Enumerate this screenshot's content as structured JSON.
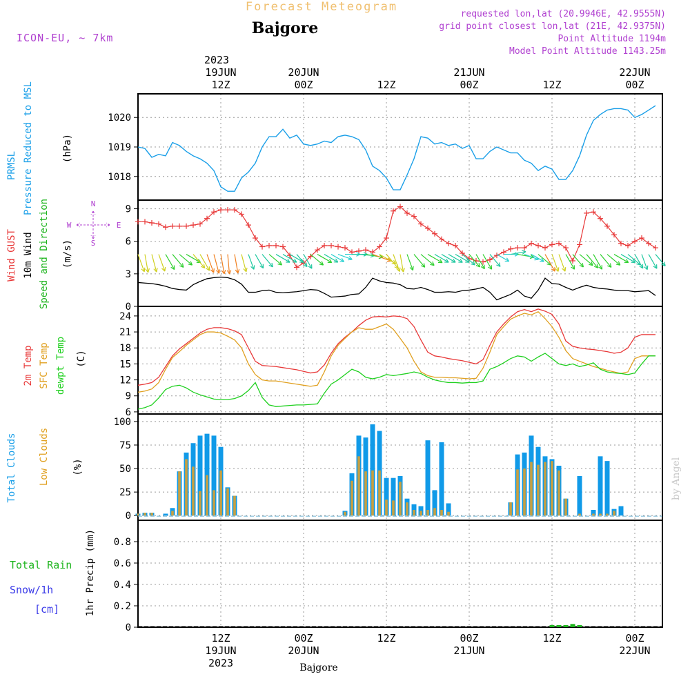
{
  "header": {
    "main_title": "Forecast Meteogram",
    "location": "Bajgore",
    "model": "ICON-EU, ~ 7km",
    "requested_point": "requested lon,lat (20.9946E, 42.9555N)",
    "grid_point": "grid point closest lon,lat (21E, 42.9375N)",
    "point_altitude": "Point Altitude 1194m",
    "model_altitude": "Model Point Altitude 1143.25m"
  },
  "time_axis": {
    "top_year": "2023",
    "ticks": [
      {
        "hour": 12,
        "label": "12Z",
        "date": "19JUN",
        "year": "2023"
      },
      {
        "hour": 24,
        "label": "00Z",
        "date": "20JUN",
        "year": ""
      },
      {
        "hour": 36,
        "label": "12Z",
        "date": "",
        "year": ""
      },
      {
        "hour": 48,
        "label": "00Z",
        "date": "21JUN",
        "year": ""
      },
      {
        "hour": 60,
        "label": "12Z",
        "date": "",
        "year": ""
      },
      {
        "hour": 72,
        "label": "00Z",
        "date": "22JUN",
        "year": ""
      }
    ],
    "range_hours": [
      0,
      76
    ],
    "footer_location": "Bajgore",
    "watermark": "by Angel"
  },
  "colors": {
    "pressure": "#1a9fe8",
    "gust": "#e83838",
    "wind_speed": "#000000",
    "wind_dir_label": "#1fb51f",
    "temp_2m": "#e83838",
    "sfc_temp": "#e0a020",
    "dewpoint": "#1fd01f",
    "total_clouds": "#109ae8",
    "low_clouds": "#c8a040",
    "rain": "#1fb51f",
    "snow": "#3a3ae8",
    "compass": "#b040d0",
    "title_orange": "#f0c070",
    "header_purple": "#b040d0"
  },
  "chart_data": [
    {
      "type": "line",
      "title": "PRMSL",
      "ylabel": "Pressure Reduced to MSL",
      "unit": "(hPa)",
      "ylim": [
        1017.2,
        1020.8
      ],
      "yticks": [
        1018,
        1019,
        1020
      ],
      "x_hours": [
        0,
        1,
        2,
        3,
        4,
        5,
        6,
        7,
        8,
        9,
        10,
        11,
        12,
        13,
        14,
        15,
        16,
        17,
        18,
        19,
        20,
        21,
        22,
        23,
        24,
        25,
        26,
        27,
        28,
        29,
        30,
        31,
        32,
        33,
        34,
        35,
        36,
        37,
        38,
        39,
        40,
        41,
        42,
        43,
        44,
        45,
        46,
        47,
        48,
        49,
        50,
        51,
        52,
        53,
        54,
        55,
        56,
        57,
        58,
        59,
        60,
        61,
        62,
        63,
        64,
        65,
        66,
        67,
        68,
        69,
        70,
        71,
        72,
        73,
        74,
        75
      ],
      "values": [
        1019.0,
        1018.95,
        1018.65,
        1018.75,
        1018.7,
        1019.15,
        1019.05,
        1018.85,
        1018.7,
        1018.6,
        1018.45,
        1018.2,
        1017.65,
        1017.5,
        1017.5,
        1017.95,
        1018.15,
        1018.45,
        1019.0,
        1019.35,
        1019.35,
        1019.6,
        1019.3,
        1019.4,
        1019.1,
        1019.05,
        1019.1,
        1019.2,
        1019.15,
        1019.35,
        1019.4,
        1019.35,
        1019.25,
        1018.9,
        1018.35,
        1018.2,
        1017.95,
        1017.55,
        1017.55,
        1018.05,
        1018.6,
        1019.35,
        1019.3,
        1019.1,
        1019.15,
        1019.05,
        1019.1,
        1018.95,
        1019.05,
        1018.6,
        1018.6,
        1018.85,
        1019.0,
        1018.9,
        1018.8,
        1018.8,
        1018.55,
        1018.45,
        1018.2,
        1018.35,
        1018.25,
        1017.9,
        1017.9,
        1018.2,
        1018.7,
        1019.4,
        1019.9,
        1020.1,
        1020.25,
        1020.3,
        1020.3,
        1020.25,
        1020.0,
        1020.1,
        1020.25,
        1020.4
      ]
    },
    {
      "type": "line",
      "title": "Wind GUST",
      "ylabel": "10m Wind Speed and Direction",
      "unit": "(m/s)",
      "ylim": [
        0,
        9.8
      ],
      "yticks": [
        0,
        3,
        6,
        9
      ],
      "compass": {
        "north": "N",
        "south": "S",
        "east": "E",
        "west": "W"
      },
      "x_hours": [
        0,
        1,
        2,
        3,
        4,
        5,
        6,
        7,
        8,
        9,
        10,
        11,
        12,
        13,
        14,
        15,
        16,
        17,
        18,
        19,
        20,
        21,
        22,
        23,
        24,
        25,
        26,
        27,
        28,
        29,
        30,
        31,
        32,
        33,
        34,
        35,
        36,
        37,
        38,
        39,
        40,
        41,
        42,
        43,
        44,
        45,
        46,
        47,
        48,
        49,
        50,
        51,
        52,
        53,
        54,
        55,
        56,
        57,
        58,
        59,
        60,
        61,
        62,
        63,
        64,
        65,
        66,
        67,
        68,
        69,
        70,
        71,
        72,
        73,
        74,
        75
      ],
      "series": [
        {
          "name": "Wind GUST",
          "marker": "+",
          "values": [
            7.8,
            7.8,
            7.7,
            7.6,
            7.3,
            7.4,
            7.4,
            7.4,
            7.5,
            7.6,
            8.1,
            8.7,
            8.9,
            8.9,
            8.9,
            8.5,
            7.5,
            6.3,
            5.5,
            5.6,
            5.6,
            5.5,
            4.7,
            3.6,
            4.0,
            4.6,
            5.2,
            5.6,
            5.6,
            5.5,
            5.4,
            5.0,
            5.1,
            5.2,
            5.0,
            5.5,
            6.3,
            8.8,
            9.2,
            8.6,
            8.3,
            7.6,
            7.2,
            6.7,
            6.2,
            5.8,
            5.6,
            4.9,
            4.4,
            4.2,
            4.1,
            4.3,
            4.7,
            5.0,
            5.3,
            5.4,
            5.4,
            5.8,
            5.6,
            5.4,
            5.7,
            5.8,
            5.4,
            4.2,
            5.7,
            8.6,
            8.7,
            8.1,
            7.4,
            6.6,
            5.8,
            5.6,
            6.0,
            6.3,
            5.8,
            5.4
          ]
        },
        {
          "name": "10m Wind Speed",
          "marker": "",
          "values": [
            2.2,
            2.15,
            2.1,
            2.0,
            1.85,
            1.65,
            1.55,
            1.5,
            2.0,
            2.3,
            2.55,
            2.65,
            2.7,
            2.65,
            2.45,
            2.05,
            1.3,
            1.3,
            1.45,
            1.5,
            1.3,
            1.25,
            1.3,
            1.35,
            1.45,
            1.55,
            1.5,
            1.2,
            0.85,
            0.9,
            0.95,
            1.1,
            1.15,
            1.75,
            2.6,
            2.35,
            2.2,
            2.15,
            2.0,
            1.65,
            1.6,
            1.75,
            1.55,
            1.3,
            1.3,
            1.35,
            1.3,
            1.45,
            1.5,
            1.6,
            1.75,
            1.3,
            0.6,
            0.85,
            1.1,
            1.5,
            0.95,
            0.75,
            1.5,
            2.6,
            2.1,
            2.05,
            1.75,
            1.5,
            1.75,
            1.95,
            1.75,
            1.65,
            1.6,
            1.5,
            1.45,
            1.45,
            1.35,
            1.4,
            1.45,
            1.0
          ]
        }
      ],
      "wind_direction_deg": [
        340,
        350,
        345,
        340,
        330,
        320,
        310,
        300,
        320,
        330,
        340,
        345,
        350,
        355,
        350,
        345,
        340,
        330,
        320,
        310,
        300,
        300,
        300,
        320,
        330,
        310,
        300,
        300,
        300,
        290,
        270,
        270,
        275,
        280,
        290,
        300,
        320,
        340,
        350,
        340,
        320,
        310,
        300,
        300,
        300,
        300,
        300,
        310,
        320,
        330,
        330,
        320,
        300,
        270,
        260,
        280,
        290,
        300,
        310,
        330,
        340,
        340,
        330,
        320,
        310,
        320,
        330,
        320,
        310,
        300,
        300,
        310,
        330,
        340,
        330,
        320
      ]
    },
    {
      "type": "line",
      "title": "2m Temp",
      "ylabel": "SFC Temp / dewpt Temp",
      "unit": "(C)",
      "ylim": [
        5.6,
        25.8
      ],
      "yticks": [
        6,
        9,
        12,
        15,
        18,
        21,
        24
      ],
      "x_hours": [
        0,
        1,
        2,
        3,
        4,
        5,
        6,
        7,
        8,
        9,
        10,
        11,
        12,
        13,
        14,
        15,
        16,
        17,
        18,
        19,
        20,
        21,
        22,
        23,
        24,
        25,
        26,
        27,
        28,
        29,
        30,
        31,
        32,
        33,
        34,
        35,
        36,
        37,
        38,
        39,
        40,
        41,
        42,
        43,
        44,
        45,
        46,
        47,
        48,
        49,
        50,
        51,
        52,
        53,
        54,
        55,
        56,
        57,
        58,
        59,
        60,
        61,
        62,
        63,
        64,
        65,
        66,
        67,
        68,
        69,
        70,
        71,
        72,
        73,
        74,
        75
      ],
      "series": [
        {
          "name": "2m Temp",
          "values": [
            11.0,
            11.2,
            11.5,
            12.5,
            14.5,
            16.5,
            17.8,
            18.8,
            19.8,
            20.8,
            21.5,
            21.8,
            21.8,
            21.6,
            21.2,
            20.5,
            18.0,
            15.5,
            14.7,
            14.6,
            14.5,
            14.3,
            14.1,
            13.9,
            13.6,
            13.3,
            13.5,
            14.8,
            17.0,
            18.8,
            20.0,
            21.0,
            22.2,
            23.2,
            23.8,
            23.9,
            23.8,
            24.0,
            23.9,
            23.5,
            22.0,
            19.5,
            17.2,
            16.5,
            16.3,
            16.0,
            15.8,
            15.6,
            15.3,
            15.0,
            15.8,
            18.5,
            21.0,
            22.5,
            23.8,
            24.8,
            25.2,
            24.8,
            25.3,
            24.9,
            24.3,
            22.5,
            19.3,
            18.3,
            18.0,
            17.8,
            17.7,
            17.5,
            17.3,
            17.0,
            17.2,
            18.0,
            20.0,
            20.5,
            20.5,
            20.5
          ]
        },
        {
          "name": "SFC Temp",
          "values": [
            9.7,
            9.9,
            10.3,
            11.5,
            14.0,
            16.2,
            17.3,
            18.5,
            19.5,
            20.5,
            21.0,
            21.0,
            20.8,
            20.2,
            19.5,
            18.0,
            15.0,
            13.0,
            12.0,
            11.8,
            11.8,
            11.6,
            11.4,
            11.2,
            11.0,
            10.8,
            11.0,
            13.5,
            16.5,
            18.5,
            19.8,
            21.0,
            21.8,
            21.5,
            21.5,
            22.0,
            22.5,
            21.5,
            19.8,
            18.0,
            15.5,
            13.5,
            12.8,
            12.5,
            12.5,
            12.4,
            12.4,
            12.3,
            12.2,
            12.3,
            14.2,
            17.2,
            20.5,
            22.0,
            23.4,
            24.0,
            24.5,
            24.2,
            24.8,
            23.5,
            22.0,
            20.0,
            17.5,
            16.0,
            15.5,
            15.0,
            14.5,
            14.2,
            13.8,
            13.5,
            13.2,
            13.5,
            16.0,
            16.5,
            16.5,
            16.5
          ]
        },
        {
          "name": "dewpt Temp",
          "values": [
            6.5,
            6.8,
            7.3,
            8.6,
            10.2,
            10.8,
            11.0,
            10.5,
            9.7,
            9.2,
            8.8,
            8.4,
            8.3,
            8.3,
            8.5,
            9.0,
            10.0,
            11.5,
            8.7,
            7.3,
            7.0,
            7.1,
            7.2,
            7.3,
            7.3,
            7.4,
            7.5,
            9.5,
            11.2,
            12.0,
            13.0,
            14.0,
            13.5,
            12.5,
            12.2,
            12.5,
            13.0,
            12.8,
            13.0,
            13.2,
            13.5,
            13.2,
            12.5,
            12.0,
            11.7,
            11.5,
            11.5,
            11.4,
            11.5,
            11.5,
            11.8,
            14.0,
            14.5,
            15.2,
            16.0,
            16.5,
            16.3,
            15.5,
            16.3,
            17.0,
            16.0,
            15.0,
            14.7,
            15.0,
            14.5,
            14.8,
            15.2,
            14.0,
            13.5,
            13.3,
            13.2,
            13.0,
            13.3,
            15.0,
            16.5,
            16.5
          ]
        }
      ]
    },
    {
      "type": "bar",
      "title": "Total Clouds",
      "ylabel": "Low Clouds",
      "unit": "(%)",
      "ylim": [
        -5,
        108
      ],
      "yticks": [
        0,
        25,
        50,
        75,
        100
      ],
      "x_hours": [
        0,
        1,
        2,
        3,
        4,
        5,
        6,
        7,
        8,
        9,
        10,
        11,
        12,
        13,
        14,
        15,
        16,
        17,
        18,
        19,
        20,
        21,
        22,
        23,
        24,
        25,
        26,
        27,
        28,
        29,
        30,
        31,
        32,
        33,
        34,
        35,
        36,
        37,
        38,
        39,
        40,
        41,
        42,
        43,
        44,
        45,
        46,
        47,
        48,
        49,
        50,
        51,
        52,
        53,
        54,
        55,
        56,
        57,
        58,
        59,
        60,
        61,
        62,
        63,
        64,
        65,
        66,
        67,
        68,
        69,
        70,
        71,
        72,
        73,
        74,
        75
      ],
      "series": [
        {
          "name": "Total Clouds",
          "values": [
            2,
            3,
            3,
            0,
            2,
            8,
            47,
            67,
            77,
            85,
            87,
            85,
            73,
            30,
            21,
            0,
            0,
            0,
            0,
            0,
            0,
            0,
            0,
            0,
            0,
            0,
            0,
            0,
            0,
            0,
            5,
            45,
            85,
            83,
            97,
            90,
            40,
            40,
            42,
            18,
            12,
            10,
            80,
            27,
            78,
            13,
            0,
            0,
            0,
            0,
            0,
            0,
            0,
            0,
            14,
            65,
            67,
            85,
            73,
            63,
            60,
            53,
            18,
            0,
            42,
            0,
            6,
            63,
            58,
            7,
            10,
            0,
            0,
            0,
            0,
            0
          ]
        },
        {
          "name": "Low Clouds",
          "values": [
            2,
            3,
            3,
            0,
            0,
            5,
            47,
            60,
            52,
            26,
            43,
            27,
            48,
            29,
            21,
            0,
            0,
            0,
            0,
            0,
            0,
            0,
            0,
            0,
            0,
            0,
            0,
            0,
            0,
            0,
            4,
            37,
            63,
            47,
            48,
            48,
            17,
            16,
            36,
            14,
            6,
            5,
            6,
            8,
            6,
            4,
            0,
            0,
            0,
            0,
            0,
            0,
            0,
            0,
            14,
            49,
            50,
            57,
            54,
            57,
            58,
            48,
            18,
            0,
            2,
            0,
            2,
            2,
            2,
            5,
            0,
            0,
            0,
            0,
            0,
            0
          ]
        }
      ]
    },
    {
      "type": "bar",
      "title": "Total Rain",
      "ylabel": "Snow/1h [cm]",
      "unit": "1hr Precip (mm)",
      "ylim": [
        0,
        1.0
      ],
      "yticks": [
        0,
        0.2,
        0.4,
        0.6,
        0.8
      ],
      "x_hours": [
        60,
        61,
        62,
        63,
        64
      ],
      "series": [
        {
          "name": "Total Rain",
          "values": [
            0.01,
            0.01,
            0.02,
            0.03,
            0.02
          ]
        },
        {
          "name": "Snow/1h",
          "values": [
            0,
            0,
            0,
            0,
            0
          ]
        }
      ]
    }
  ]
}
